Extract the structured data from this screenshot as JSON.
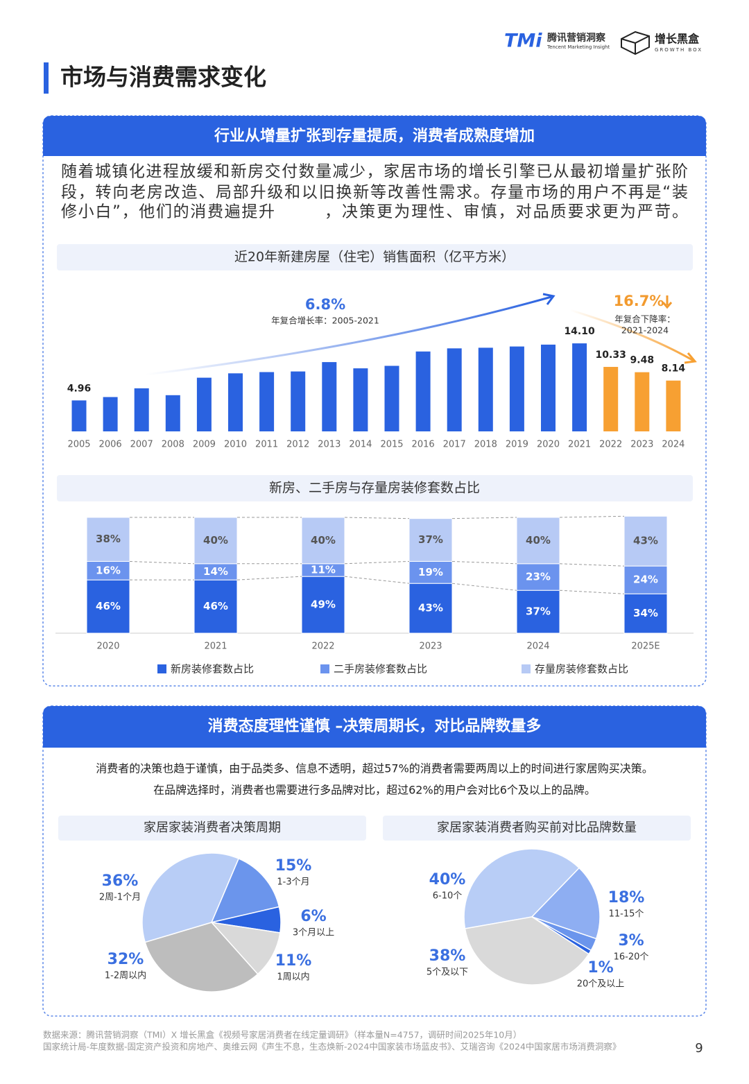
{
  "header": {
    "logo": "TMi",
    "brand": "腾讯营销洞察",
    "brand_en": "Tencent Marketing Insight",
    "partner": "增长黑盒",
    "partner_en": "GROWTH BOX"
  },
  "page_title": "市场与消费需求变化",
  "section1": {
    "title": "行业从增量扩张到存量提质，消费者成熟度增加",
    "body": [
      "随着城镇化进程放缓和新房交付数量减少，家居市场的增长引擎已从最初增量扩张阶",
      "段，转向老房改造、局部升级和以旧换新等改善性需求。存量市场的用户不再是“装",
      "修小白”，他们的消费遍提升",
      "，决策更为理性、审慎，对品质要求更为严苛。"
    ]
  },
  "section2": {
    "title": "消费态度理性谨慎 –决策周期长，对比品牌数量多",
    "body": [
      "消费者的决策也趋于谨慎，由于品类多、信息不透明，超过57%的消费者需要两周以上的时间进行家居购买决策。",
      "在品牌选择时，消费者也需要进行多品牌对比，超过62%的用户会对比6个及以上的品牌。"
    ]
  },
  "chart_data": [
    {
      "type": "bar",
      "title": "近20年新建房屋（住宅）销售面积（亿平方米）",
      "categories": [
        "2005",
        "2006",
        "2007",
        "2008",
        "2009",
        "2010",
        "2011",
        "2012",
        "2013",
        "2014",
        "2015",
        "2016",
        "2017",
        "2018",
        "2019",
        "2020",
        "2021",
        "2022",
        "2023",
        "2024"
      ],
      "values": [
        4.96,
        5.5,
        6.9,
        5.8,
        8.6,
        9.3,
        9.5,
        9.6,
        11.1,
        10.1,
        10.5,
        12.8,
        13.3,
        13.4,
        13.6,
        13.9,
        14.1,
        10.33,
        9.48,
        8.14
      ],
      "value_labels": [
        "4.96",
        null,
        null,
        null,
        null,
        null,
        null,
        null,
        null,
        null,
        null,
        null,
        null,
        null,
        null,
        null,
        "14.10",
        "10.33",
        "9.48",
        "8.14"
      ],
      "colors": [
        "#2a62e0",
        "#2a62e0",
        "#2a62e0",
        "#2a62e0",
        "#2a62e0",
        "#2a62e0",
        "#2a62e0",
        "#2a62e0",
        "#2a62e0",
        "#2a62e0",
        "#2a62e0",
        "#2a62e0",
        "#2a62e0",
        "#2a62e0",
        "#2a62e0",
        "#2a62e0",
        "#2a62e0",
        "#f7a032",
        "#f7a032",
        "#f7a032"
      ],
      "ylim": [
        0,
        15.5
      ],
      "annotations": [
        "6.8%",
        "年复合增长率：2005-2021",
        "16.7%",
        "年复合下降率：",
        "2021-2024"
      ]
    },
    {
      "type": "bar",
      "stacked": true,
      "title": "新房、二手房与存量房装修套数占比",
      "categories": [
        "2020",
        "2021",
        "2022",
        "2023",
        "2024",
        "2025E"
      ],
      "ylim": [
        0,
        100
      ],
      "series": [
        {
          "name": "新房装修套数占比",
          "color": "#2a62e0",
          "values": [
            46,
            46,
            49,
            43,
            37,
            34
          ],
          "value_labels": [
            "46%",
            "46%",
            "49%",
            "43%",
            "37%",
            "34%"
          ]
        },
        {
          "name": "二手房装修套数占比",
          "color": "#6b93ee",
          "values": [
            16,
            14,
            11,
            19,
            23,
            24
          ],
          "value_labels": [
            "16%",
            "14%",
            "11%",
            "19%",
            "23%",
            "24%"
          ]
        },
        {
          "name": "存量房装修套数占比",
          "color": "#b7caf5",
          "values": [
            38,
            40,
            40,
            37,
            40,
            43
          ],
          "value_labels": [
            "38%",
            "40%",
            "40%",
            "37%",
            "40%",
            "43%"
          ]
        }
      ]
    },
    {
      "type": "pie",
      "title": "家居家装消费者决策周期",
      "categories": [
        "1-3个月",
        "3个月以上",
        "1周以内",
        "1-2周以内",
        "2周-1个月"
      ],
      "values": [
        15,
        6,
        11,
        32,
        36
      ],
      "value_labels": [
        "15%",
        "6%",
        "11%",
        "32%",
        "36%"
      ],
      "colors": [
        "#6b95ec",
        "#2a62e0",
        "#d9d9d9",
        "#bdbdbd",
        "#b8cdf6"
      ]
    },
    {
      "type": "pie",
      "title": "家居家装消费者购买前对比品牌数量",
      "categories": [
        "6-10个",
        "11-15个",
        "16-20个",
        "20个及以上",
        "5个及以下"
      ],
      "values": [
        40,
        18,
        3,
        1,
        38
      ],
      "value_labels": [
        "40%",
        "18%",
        "3%",
        "1%",
        "38%"
      ],
      "colors": [
        "#b8cdf6",
        "#8eaef2",
        "#6b95ec",
        "#2a62e0",
        "#d9d9d9"
      ]
    }
  ],
  "footer": [
    "数据来源：腾讯营销洞察（TMI）X 增长黑盒《视频号家居消费者在线定量调研》（样本量N=4757，调研时间2025年10月）",
    "国家统计局-年度数据-固定资产投资和房地产、奥维云网《声生不息，生态焕新-2024中国家装市场蓝皮书》、艾瑞咨询《2024中国家居市场消费洞察》"
  ],
  "page_number": "9"
}
